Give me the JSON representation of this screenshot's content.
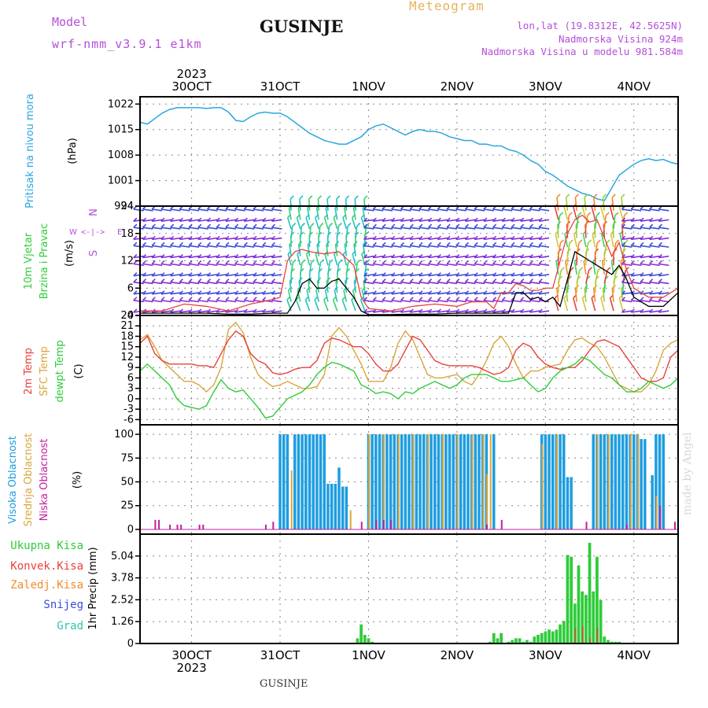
{
  "header": {
    "model_label": "Model",
    "model_name": "wrf-nmm_v3.9.1 e1km",
    "station": "GUSINJE",
    "meteogram": "Meteogram",
    "lonlat": "lon,lat (19.8312E, 42.5625N)",
    "elevation": "Nadmorska Visina 924m",
    "elevation_model": "Nadmorska Visina u modelu 981.584m",
    "watermark": "made by Angel",
    "footer_station": "GUSINJE"
  },
  "colors": {
    "pressure": "#2aa6e0",
    "wind_speed": "#000000",
    "wind_gust": "#e8423c",
    "temp2m": "#e8423c",
    "sfc_temp": "#d9a53c",
    "dewpoint": "#2ecc3a",
    "cloud_high": "#1e9de0",
    "cloud_mid": "#d9a53c",
    "cloud_low": "#c21ea0",
    "precip_total": "#2ecc3a",
    "precip_conv": "#e8423c",
    "precip_frz": "#f28a2e",
    "snow": "#3a4bd8",
    "graupel": "#2fc4b0",
    "purple": "#b44fd8"
  },
  "time_axis": {
    "year": "2023",
    "days": [
      "30OCT",
      "31OCT",
      "1NOV",
      "2NOV",
      "3NOV",
      "4NOV"
    ],
    "day_positions_hours": [
      0,
      24,
      48,
      72,
      96,
      120
    ],
    "start_hour": -14,
    "end_hour": 132
  },
  "panels": {
    "pressure": {
      "ylabel_main": "Pritisak na nivou mora",
      "ylabel_unit": "(hPa)",
      "ticks": [
        "1022",
        "1015",
        "1008",
        "1001",
        "994"
      ]
    },
    "wind": {
      "ylabel_main": "10m Vjetar",
      "ylabel_sub": "Brzina i Pravac",
      "ylabel_unit": "(m/s)",
      "compass_n": "N",
      "compass_s": "S",
      "compass_w": "W",
      "compass_e": "E",
      "compass_arrows": "<-|->",
      "ticks": [
        "0",
        "6",
        "12",
        "18",
        "24"
      ]
    },
    "temperature": {
      "label_temp": "2m Temp",
      "label_sfc": "SFC Temp",
      "label_dew": "dewpt Temp",
      "ylabel_unit": "(C)",
      "ticks": [
        "-6",
        "-3",
        "0",
        "3",
        "6",
        "9",
        "12",
        "15",
        "18",
        "21",
        "24"
      ]
    },
    "cloud": {
      "label_high": "Visoka Oblacnost",
      "label_mid": "Srednja Oblacnost",
      "label_low": "Niska Oblacnost",
      "ylabel_unit": "(%)",
      "ticks": [
        "0",
        "25",
        "50",
        "75",
        "100"
      ]
    },
    "precip": {
      "label_total": "Ukupna Kisa",
      "label_conv": "Konvek.Kisa",
      "label_frz": "Zaledj.Kisa",
      "label_snow": "Snijeg",
      "label_grad": "Grad",
      "ylabel": "1hr Precip (mm)",
      "ticks": [
        "0",
        "1.26",
        "2.52",
        "3.78",
        "5.04"
      ]
    }
  },
  "chart_data": [
    {
      "type": "line",
      "name": "sea-level-pressure",
      "ylabel": "Pritisak na nivou mora (hPa)",
      "ylim": [
        994,
        1024
      ],
      "x_unit": "hours from 30OCT 00",
      "x": [
        -14,
        -12,
        -10,
        -8,
        -6,
        -4,
        -2,
        0,
        2,
        4,
        6,
        8,
        10,
        12,
        14,
        16,
        18,
        20,
        22,
        24,
        26,
        28,
        30,
        32,
        34,
        36,
        38,
        40,
        42,
        44,
        46,
        48,
        50,
        52,
        54,
        56,
        58,
        60,
        62,
        64,
        66,
        68,
        70,
        72,
        74,
        76,
        78,
        80,
        82,
        84,
        86,
        88,
        90,
        92,
        94,
        96,
        98,
        100,
        102,
        104,
        106,
        108,
        110,
        112,
        114,
        116,
        118,
        120,
        122,
        124,
        126,
        128,
        130,
        132
      ],
      "values": [
        1017,
        1016.5,
        1018,
        1019.5,
        1020.5,
        1021,
        1021,
        1021,
        1021,
        1020.8,
        1021,
        1021,
        1019.8,
        1017.5,
        1017.2,
        1018.5,
        1019.5,
        1019.8,
        1019.5,
        1019.5,
        1018.5,
        1017,
        1015.5,
        1014,
        1013,
        1012,
        1011.5,
        1011,
        1011,
        1012,
        1013,
        1015,
        1016,
        1016.5,
        1015.5,
        1014.5,
        1013.5,
        1014.5,
        1015,
        1014.5,
        1014.5,
        1014,
        1013,
        1012.5,
        1012,
        1012,
        1011,
        1011,
        1010.5,
        1010.5,
        1009.5,
        1009,
        1008,
        1006.5,
        1005.5,
        1003.5,
        1002.5,
        1001,
        999.5,
        998.5,
        997.5,
        997,
        996,
        995.5,
        999,
        1002.5,
        1004,
        1005.5,
        1006.5,
        1007,
        1006.5,
        1006.8,
        1006,
        1005.5
      ]
    },
    {
      "type": "line",
      "name": "10m-wind",
      "ylabel": "10m Vjetar Brzina i Pravac (m/s)",
      "ylim": [
        0,
        24
      ],
      "x_unit": "hours from 30OCT 00",
      "series": [
        {
          "name": "speed",
          "x": [
            -14,
            -8,
            -2,
            4,
            10,
            16,
            22,
            26,
            28,
            30,
            32,
            34,
            36,
            38,
            40,
            42,
            44,
            46,
            48,
            54,
            60,
            66,
            72,
            78,
            82,
            86,
            88,
            90,
            92,
            94,
            96,
            98,
            100,
            102,
            104,
            106,
            108,
            110,
            112,
            114,
            116,
            118,
            120,
            124,
            128,
            132
          ],
          "values": [
            0.5,
            0.5,
            0.5,
            0.5,
            0.3,
            0.3,
            0.5,
            0.5,
            3,
            7,
            8,
            6,
            6,
            7.5,
            8,
            6,
            4,
            1,
            0.2,
            0.2,
            0.3,
            0.3,
            0.5,
            0.5,
            0.5,
            0.5,
            5,
            5,
            3.5,
            4,
            3,
            4,
            2,
            8,
            14,
            13,
            12,
            11,
            10,
            9,
            11,
            8,
            4,
            2,
            2,
            5
          ]
        },
        {
          "name": "gust",
          "x": [
            -14,
            -8,
            -2,
            4,
            10,
            16,
            22,
            24,
            26,
            28,
            30,
            32,
            36,
            40,
            44,
            46,
            48,
            54,
            60,
            66,
            72,
            76,
            80,
            82,
            84,
            86,
            88,
            90,
            92,
            94,
            96,
            98,
            100,
            102,
            104,
            106,
            108,
            110,
            112,
            114,
            116,
            118,
            120,
            124,
            128,
            132
          ],
          "values": [
            1,
            1,
            2.5,
            2,
            1,
            2.5,
            3.5,
            4,
            12,
            14,
            14.5,
            14,
            13.5,
            14,
            11,
            4,
            1.5,
            1,
            2,
            2.5,
            2,
            3,
            3,
            1.5,
            5,
            5,
            7,
            6.5,
            5.5,
            5.5,
            6,
            6,
            12,
            18,
            21,
            22,
            20.5,
            21,
            17,
            13,
            16,
            10,
            6,
            4,
            4,
            6
          ]
        }
      ]
    },
    {
      "type": "line",
      "name": "temperature",
      "ylabel": "(C)",
      "ylim": [
        -6,
        24
      ],
      "x_unit": "hours from 30OCT 00",
      "x": [
        -14,
        -12,
        -10,
        -8,
        -6,
        -4,
        -2,
        0,
        2,
        4,
        6,
        8,
        10,
        12,
        14,
        16,
        18,
        20,
        22,
        24,
        26,
        28,
        30,
        32,
        34,
        36,
        38,
        40,
        42,
        44,
        46,
        48,
        50,
        52,
        54,
        56,
        58,
        60,
        62,
        64,
        66,
        68,
        70,
        72,
        74,
        76,
        78,
        80,
        82,
        84,
        86,
        88,
        90,
        92,
        94,
        96,
        98,
        100,
        102,
        104,
        106,
        108,
        110,
        112,
        114,
        116,
        118,
        120,
        122,
        124,
        126,
        128,
        130,
        132
      ],
      "series": [
        {
          "name": "2m",
          "values": [
            16,
            18,
            13,
            11,
            10,
            10,
            10,
            10,
            9.5,
            9.5,
            9,
            13,
            17,
            19.5,
            18,
            13,
            11,
            10,
            7.5,
            7,
            7.5,
            8.5,
            9,
            9,
            11,
            16,
            17.5,
            17,
            16,
            15,
            15,
            13,
            10,
            8,
            8,
            10,
            14,
            18,
            17,
            14,
            11,
            10,
            9.5,
            9.5,
            9.5,
            9.5,
            9,
            8,
            7,
            7.5,
            9,
            14,
            16,
            15,
            12,
            10,
            9,
            8.5,
            9,
            9,
            11,
            14,
            16.5,
            17,
            16,
            15,
            12,
            9,
            6,
            5,
            5,
            6,
            12,
            14
          ]
        },
        {
          "name": "SFC",
          "values": [
            17,
            18.5,
            15,
            11,
            9,
            7,
            5,
            5,
            4,
            2,
            4,
            9,
            20,
            22,
            19,
            12,
            7,
            5,
            3.5,
            4,
            5,
            4,
            3,
            3,
            3.5,
            7,
            18,
            20.5,
            18,
            14,
            10,
            5,
            5,
            5,
            9,
            16,
            19.5,
            17,
            12,
            7,
            6,
            6,
            6.5,
            7,
            5,
            4,
            7,
            11,
            16,
            18,
            15,
            10,
            6,
            8,
            8,
            9,
            9.5,
            10,
            14,
            17,
            17.5,
            16,
            15,
            12,
            8,
            4,
            3,
            2,
            2,
            4,
            8,
            14,
            16,
            17
          ]
        },
        {
          "name": "dewpt",
          "values": [
            8,
            10,
            8,
            6,
            4,
            0,
            -2,
            -2.5,
            -3,
            -2,
            2,
            5.5,
            3,
            2,
            2.5,
            0,
            -2.5,
            -5.5,
            -5,
            -2.5,
            0,
            1,
            2,
            4,
            7,
            9,
            10.5,
            10,
            9,
            8,
            4,
            3,
            1.5,
            2,
            1.5,
            0,
            2,
            1.5,
            3,
            4,
            5,
            4,
            3,
            4,
            6,
            7,
            7,
            7,
            6,
            5,
            5,
            5.5,
            6,
            4,
            2,
            3,
            6,
            8,
            9,
            10,
            12,
            11,
            9,
            7,
            6,
            4,
            2,
            2,
            3,
            5,
            4,
            3,
            4,
            6
          ]
        }
      ]
    },
    {
      "type": "bar",
      "name": "cloud-cover",
      "ylabel": "(%)",
      "ylim": [
        0,
        100
      ],
      "x_unit": "hours from 30OCT 00",
      "series": [
        {
          "name": "high",
          "x": [
            24,
            25,
            26,
            28,
            29,
            30,
            31,
            32,
            33,
            34,
            35,
            36,
            37,
            38,
            39,
            40,
            41,
            42,
            48,
            49,
            50,
            51,
            52,
            53,
            54,
            55,
            56,
            57,
            58,
            59,
            60,
            61,
            62,
            63,
            64,
            65,
            66,
            67,
            68,
            69,
            70,
            71,
            72,
            73,
            74,
            75,
            76,
            77,
            78,
            79,
            80,
            82,
            95,
            96,
            97,
            98,
            99,
            100,
            101,
            102,
            103,
            109,
            110,
            111,
            112,
            113,
            114,
            115,
            116,
            117,
            118,
            119,
            120,
            121,
            122,
            123,
            125,
            126,
            127,
            128
          ],
          "values": [
            100,
            100,
            100,
            100,
            100,
            100,
            100,
            100,
            100,
            100,
            100,
            100,
            48,
            48,
            48,
            65,
            45,
            45,
            100,
            100,
            100,
            100,
            100,
            100,
            100,
            100,
            100,
            100,
            100,
            100,
            100,
            100,
            100,
            100,
            100,
            100,
            100,
            100,
            100,
            100,
            100,
            100,
            100,
            100,
            100,
            100,
            100,
            100,
            100,
            100,
            100,
            100,
            100,
            100,
            100,
            100,
            100,
            100,
            100,
            55,
            55,
            100,
            100,
            100,
            100,
            100,
            100,
            100,
            100,
            100,
            100,
            100,
            100,
            100,
            95,
            95,
            57,
            100,
            100,
            100
          ]
        },
        {
          "name": "mid",
          "x": [
            27,
            43,
            48,
            52,
            56,
            60,
            64,
            68,
            72,
            76,
            79,
            80,
            81,
            95,
            99,
            110,
            113,
            119,
            121,
            126
          ],
          "values": [
            62,
            20,
            100,
            100,
            100,
            100,
            100,
            100,
            100,
            100,
            100,
            58,
            100,
            90,
            100,
            100,
            100,
            100,
            100,
            35
          ]
        },
        {
          "name": "low",
          "x": [
            -10,
            -9,
            -6,
            -4,
            -3,
            2,
            3,
            20,
            22,
            46,
            50,
            52,
            54,
            80,
            84,
            107,
            118,
            127,
            131
          ],
          "values": [
            10,
            10,
            5,
            5,
            5,
            5,
            5,
            5,
            8,
            8,
            10,
            10,
            10,
            5,
            10,
            8,
            5,
            25,
            8
          ]
        }
      ]
    },
    {
      "type": "bar",
      "name": "hourly-precipitation",
      "ylabel": "1hr Precip (mm)",
      "ylim": [
        0,
        6.3
      ],
      "x_unit": "hours from 30OCT 00",
      "series": [
        {
          "name": "total",
          "x": [
            45,
            46,
            47,
            48,
            49,
            81,
            82,
            83,
            84,
            86,
            87,
            88,
            89,
            90,
            91,
            92,
            93,
            94,
            95,
            96,
            97,
            98,
            99,
            100,
            101,
            102,
            103,
            104,
            105,
            106,
            107,
            108,
            109,
            110,
            111,
            112,
            113,
            114,
            115,
            116
          ],
          "values": [
            0.3,
            1.1,
            0.5,
            0.3,
            0.1,
            0.1,
            0.6,
            0.3,
            0.6,
            0.1,
            0.2,
            0.3,
            0.3,
            0.1,
            0.2,
            0.1,
            0.4,
            0.5,
            0.6,
            0.7,
            0.8,
            0.7,
            0.8,
            1.1,
            1.3,
            5.1,
            5.0,
            2.3,
            4.5,
            3.0,
            2.8,
            5.8,
            3.0,
            5.0,
            2.5,
            0.4,
            0.2,
            0.1,
            0.1,
            0.1
          ]
        },
        {
          "name": "convective",
          "x": [
            104,
            106,
            108,
            110
          ],
          "values": [
            0.9,
            1.0,
            0.3,
            0.9
          ]
        }
      ]
    }
  ]
}
